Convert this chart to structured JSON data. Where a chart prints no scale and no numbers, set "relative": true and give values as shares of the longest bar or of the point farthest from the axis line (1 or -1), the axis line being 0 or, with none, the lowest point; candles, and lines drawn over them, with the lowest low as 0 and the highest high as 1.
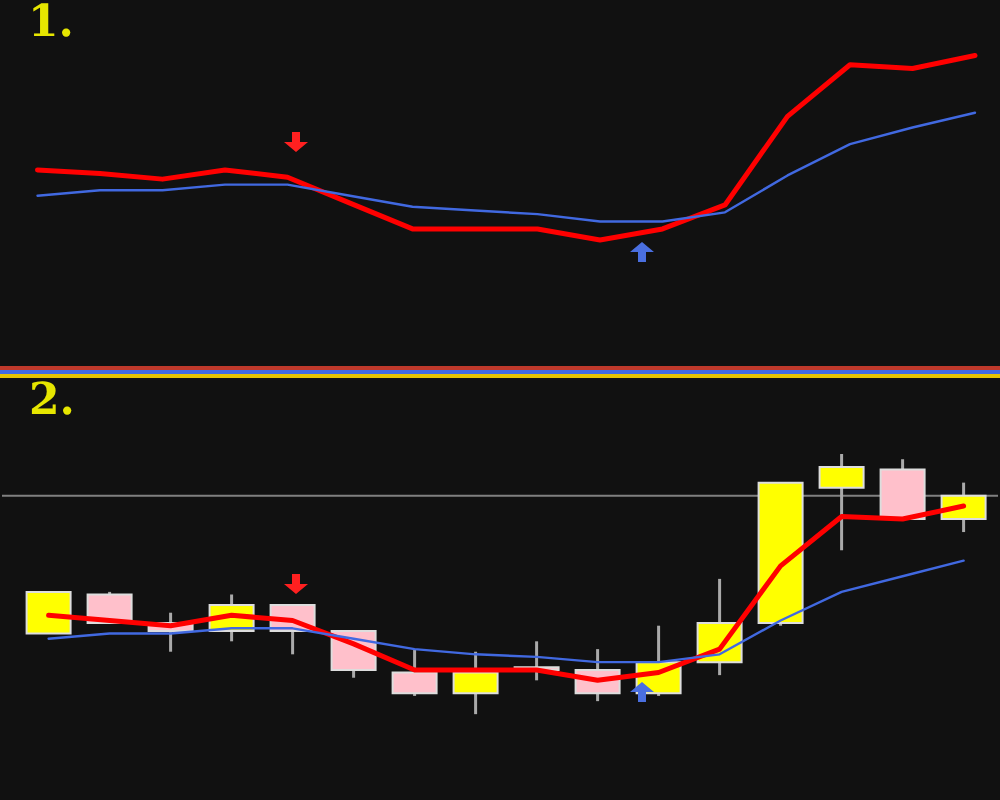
{
  "chart_data": [
    {
      "type": "line",
      "title": "1.",
      "relative": true,
      "categories": [
        null,
        null,
        null,
        null,
        null,
        null,
        null,
        null,
        null,
        null,
        null,
        null,
        null,
        null,
        null,
        null
      ],
      "series": [
        {
          "color": "#ff0000",
          "values": [
            0.38,
            0.36,
            0.33,
            0.38,
            0.34,
            0.2,
            0.06,
            0.06,
            0.06,
            0,
            0.06,
            0.19,
            0.67,
            0.95,
            0.93,
            1
          ]
        },
        {
          "color": "#4169e1",
          "values": [
            0.24,
            0.27,
            0.27,
            0.3,
            0.3,
            0.24,
            0.18,
            0.16,
            0.14,
            0.1,
            0.1,
            0.15,
            0.35,
            0.52,
            0.61,
            0.69
          ]
        }
      ]
    },
    {
      "type": "candlestick",
      "title": "2.",
      "relative": true,
      "categories": [
        null,
        null,
        null,
        null,
        null,
        null,
        null,
        null,
        null,
        null,
        null,
        null,
        null,
        null,
        null,
        null
      ],
      "ohlc": [
        [
          0.31,
          0.47,
          0.31,
          0.47
        ],
        [
          0.46,
          0.47,
          0.35,
          0.35
        ],
        [
          0.35,
          0.39,
          0.24,
          0.32
        ],
        [
          0.32,
          0.46,
          0.28,
          0.42
        ],
        [
          0.42,
          0.42,
          0.23,
          0.32
        ],
        [
          0.32,
          0.32,
          0.14,
          0.17
        ],
        [
          0.16,
          0.25,
          0.07,
          0.08
        ],
        [
          0.08,
          0.24,
          0,
          0.16
        ],
        [
          0.18,
          0.28,
          0.13,
          0.17
        ],
        [
          0.17,
          0.25,
          0.05,
          0.08
        ],
        [
          0.08,
          0.34,
          0.07,
          0.2
        ],
        [
          0.2,
          0.52,
          0.15,
          0.35
        ],
        [
          0.35,
          0.89,
          0.34,
          0.89
        ],
        [
          0.87,
          1,
          0.63,
          0.95
        ],
        [
          0.94,
          0.98,
          0.75,
          0.75
        ],
        [
          0.75,
          0.89,
          0.7,
          0.84
        ]
      ],
      "colors": [
        "#ffff00",
        "#ffc0cb",
        "#ffc0cb",
        "#ffff00",
        "#ffc0cb",
        "#ffc0cb",
        "#ffc0cb",
        "#ffff00",
        "#ffc0cb",
        "#ffc0cb",
        "#ffff00",
        "#ffff00",
        "#ffff00",
        "#ffff00",
        "#ffc0cb",
        "#ffff00"
      ],
      "series": [
        {
          "type": "line",
          "color": "#ff0000",
          "values": [
            0.38,
            0.36,
            0.34,
            0.38,
            0.36,
            0.27,
            0.17,
            0.17,
            0.17,
            0.13,
            0.16,
            0.25,
            0.57,
            0.76,
            0.75,
            0.8
          ]
        },
        {
          "type": "line",
          "color": "#4169e1",
          "values": [
            0.29,
            0.31,
            0.31,
            0.33,
            0.33,
            0.29,
            0.25,
            0.23,
            0.22,
            0.2,
            0.2,
            0.23,
            0.36,
            0.47,
            0.53,
            0.59
          ]
        }
      ],
      "ref_lines": [
        {
          "axis": "y",
          "value": 0.84,
          "color": "#808080"
        }
      ]
    }
  ]
}
